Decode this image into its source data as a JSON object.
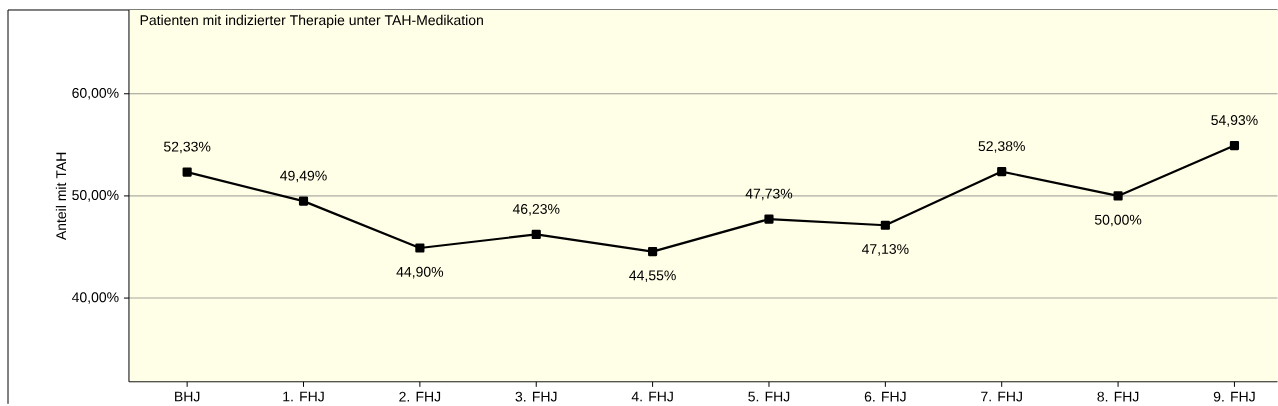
{
  "chart_data": {
    "type": "line",
    "title": "Patienten mit indizierter Therapie unter TAH-Medikation",
    "ylabel": "Anteil mit TAH",
    "categories": [
      "BHJ",
      "1. FHJ",
      "2. FHJ",
      "3. FHJ",
      "4. FHJ",
      "5. FHJ",
      "6. FHJ",
      "7. FHJ",
      "8. FHJ",
      "9. FHJ"
    ],
    "series": [
      {
        "color": "#000000",
        "values": [
          52.33,
          49.49,
          44.9,
          46.23,
          44.55,
          47.73,
          47.13,
          52.38,
          50.0,
          54.93
        ],
        "value_labels": [
          "52,33%",
          "49,49%",
          "44,90%",
          "46,23%",
          "44,55%",
          "47,73%",
          "47,13%",
          "52,38%",
          "50,00%",
          "54,93%"
        ]
      }
    ],
    "ylim": [
      31.8,
      68.2
    ],
    "yticks": [
      {
        "value": 40,
        "label": "40,00%"
      },
      {
        "value": 50,
        "label": "50,00%"
      },
      {
        "value": 60,
        "label": "60,00%"
      }
    ],
    "grid": "y",
    "marker": "square",
    "line_style": "solid"
  }
}
